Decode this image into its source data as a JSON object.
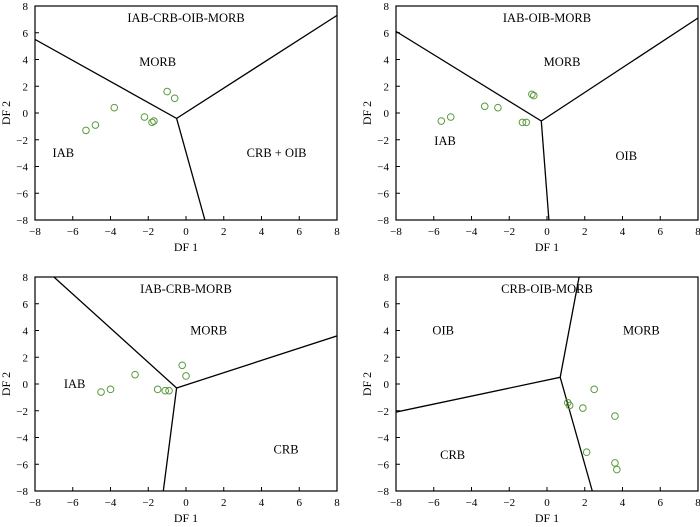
{
  "chart_data": [
    {
      "type": "scatter",
      "title": "IAB-CRB-OIB-MORB",
      "xlabel": "DF 1",
      "ylabel": "DF 2",
      "xlim": [
        -8,
        8
      ],
      "ylim": [
        -8,
        8
      ],
      "xticks": [
        -8,
        -6,
        -4,
        -2,
        0,
        2,
        4,
        6,
        8
      ],
      "yticks": [
        -8,
        -6,
        -4,
        -2,
        0,
        2,
        4,
        6,
        8
      ],
      "fields": [
        {
          "label": "MORB",
          "x": -1.5,
          "y": 3.5
        },
        {
          "label": "IAB",
          "x": -6.5,
          "y": -3.3
        },
        {
          "label": "CRB + OIB",
          "x": 4.8,
          "y": -3.3
        }
      ],
      "boundaries": [
        [
          [
            -8,
            5.5
          ],
          [
            -0.5,
            -0.4
          ],
          [
            8,
            7.3
          ]
        ],
        [
          [
            -0.5,
            -0.4
          ],
          [
            1,
            -8
          ]
        ]
      ],
      "points": [
        {
          "x": -5.3,
          "y": -1.3
        },
        {
          "x": -4.8,
          "y": -0.9
        },
        {
          "x": -3.8,
          "y": 0.4
        },
        {
          "x": -2.2,
          "y": -0.3
        },
        {
          "x": -1.8,
          "y": -0.7
        },
        {
          "x": -1.7,
          "y": -0.6
        },
        {
          "x": -1.0,
          "y": 1.6
        },
        {
          "x": -0.6,
          "y": 1.1
        }
      ]
    },
    {
      "type": "scatter",
      "title": "IAB-OIB-MORB",
      "xlabel": "DF 1",
      "ylabel": "DF 2",
      "xlim": [
        -8,
        8
      ],
      "ylim": [
        -8,
        8
      ],
      "xticks": [
        -8,
        -6,
        -4,
        -2,
        0,
        2,
        4,
        6,
        8
      ],
      "yticks": [
        -8,
        -6,
        -4,
        -2,
        0,
        2,
        4,
        6,
        8
      ],
      "fields": [
        {
          "label": "MORB",
          "x": 0.8,
          "y": 3.5
        },
        {
          "label": "IAB",
          "x": -5.4,
          "y": -2.4
        },
        {
          "label": "OIB",
          "x": 4.2,
          "y": -3.5
        }
      ],
      "boundaries": [
        [
          [
            -8,
            6.1
          ],
          [
            -0.3,
            -0.6
          ],
          [
            8,
            7.1
          ]
        ],
        [
          [
            -0.3,
            -0.6
          ],
          [
            0.1,
            -8
          ]
        ]
      ],
      "points": [
        {
          "x": -5.6,
          "y": -0.6
        },
        {
          "x": -5.1,
          "y": -0.3
        },
        {
          "x": -3.3,
          "y": 0.5
        },
        {
          "x": -2.6,
          "y": 0.4
        },
        {
          "x": -1.3,
          "y": -0.7
        },
        {
          "x": -1.1,
          "y": -0.7
        },
        {
          "x": -0.8,
          "y": 1.4
        },
        {
          "x": -0.7,
          "y": 1.3
        }
      ]
    },
    {
      "type": "scatter",
      "title": "IAB-CRB-MORB",
      "xlabel": "DF 1",
      "ylabel": "DF 2",
      "xlim": [
        -8,
        8
      ],
      "ylim": [
        -8,
        8
      ],
      "xticks": [
        -8,
        -6,
        -4,
        -2,
        0,
        2,
        4,
        6,
        8
      ],
      "yticks": [
        -8,
        -6,
        -4,
        -2,
        0,
        2,
        4,
        6,
        8
      ],
      "fields": [
        {
          "label": "MORB",
          "x": 1.2,
          "y": 3.7
        },
        {
          "label": "IAB",
          "x": -5.9,
          "y": -0.3
        },
        {
          "label": "CRB",
          "x": 5.3,
          "y": -5.2
        }
      ],
      "boundaries": [
        [
          [
            -7.0,
            8
          ],
          [
            -0.5,
            -0.3
          ],
          [
            8,
            3.6
          ]
        ],
        [
          [
            -0.5,
            -0.3
          ],
          [
            -1.2,
            -8
          ]
        ]
      ],
      "points": [
        {
          "x": -4.5,
          "y": -0.6
        },
        {
          "x": -4.0,
          "y": -0.4
        },
        {
          "x": -2.7,
          "y": 0.7
        },
        {
          "x": -1.5,
          "y": -0.4
        },
        {
          "x": -1.1,
          "y": -0.5
        },
        {
          "x": -0.9,
          "y": -0.5
        },
        {
          "x": -0.2,
          "y": 1.4
        },
        {
          "x": 0.0,
          "y": 0.6
        }
      ]
    },
    {
      "type": "scatter",
      "title": "CRB-OIB-MORB",
      "xlabel": "DF 1",
      "ylabel": "DF 2",
      "xlim": [
        -8,
        8
      ],
      "ylim": [
        -8,
        8
      ],
      "xticks": [
        -8,
        -6,
        -4,
        -2,
        0,
        2,
        4,
        6,
        8
      ],
      "yticks": [
        -8,
        -6,
        -4,
        -2,
        0,
        2,
        4,
        6,
        8
      ],
      "fields": [
        {
          "label": "OIB",
          "x": -5.5,
          "y": 3.7
        },
        {
          "label": "MORB",
          "x": 5.0,
          "y": 3.7
        },
        {
          "label": "CRB",
          "x": -5.0,
          "y": -5.6
        }
      ],
      "boundaries": [
        [
          [
            -8,
            -2.1
          ],
          [
            0.7,
            0.5
          ],
          [
            1.7,
            8
          ]
        ],
        [
          [
            0.7,
            0.5
          ],
          [
            2.4,
            -8
          ]
        ]
      ],
      "points": [
        {
          "x": 1.1,
          "y": -1.4
        },
        {
          "x": 1.2,
          "y": -1.6
        },
        {
          "x": 1.9,
          "y": -1.8
        },
        {
          "x": 2.1,
          "y": -5.1
        },
        {
          "x": 2.5,
          "y": -0.4
        },
        {
          "x": 3.6,
          "y": -2.4
        },
        {
          "x": 3.6,
          "y": -5.9
        },
        {
          "x": 3.7,
          "y": -6.4
        }
      ]
    }
  ]
}
